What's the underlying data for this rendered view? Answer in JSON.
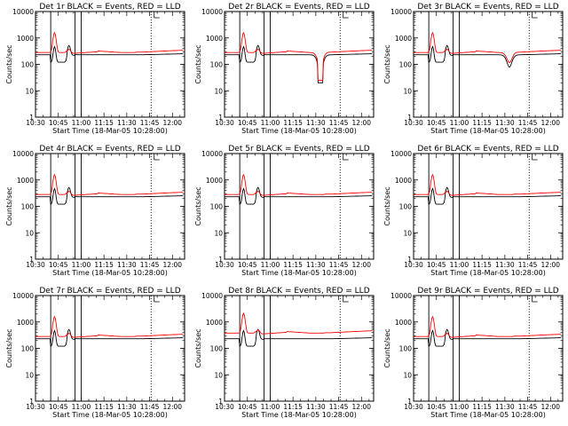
{
  "chart_data": [
    {
      "type": "line",
      "title": "Det 1r  BLACK = Events, RED = LLD",
      "xlabel": "Start Time (18-Mar-05 10:28:00)",
      "ylabel": "Counts/sec",
      "ylim": [
        1,
        10000
      ],
      "yscale": "log",
      "xlim": [
        "10:30",
        "12:08"
      ],
      "x_tick_labels": [
        "10:30",
        "10:45",
        "11:00",
        "11:15",
        "11:30",
        "11:45",
        "12:00"
      ],
      "y_tick_labels": [
        "1",
        "10",
        "100",
        "1000",
        "10000"
      ],
      "vertical_lines": {
        "solid": [
          "10:40",
          "10:56",
          "11:00"
        ],
        "dotted": [
          "11:46"
        ]
      },
      "dip": 0,
      "series": [
        {
          "color": "#000000",
          "scale": 1.0
        },
        {
          "color": "#ff0000",
          "scale": 1.0
        }
      ]
    },
    {
      "type": "line",
      "title": "Det 2r  BLACK = Events, RED = LLD",
      "xlabel": "Start Time (18-Mar-05 10:28:00)",
      "ylabel": "Counts/sec",
      "ylim": [
        1,
        10000
      ],
      "yscale": "log",
      "xlim": [
        "10:30",
        "12:08"
      ],
      "x_tick_labels": [
        "10:30",
        "10:45",
        "11:00",
        "11:15",
        "11:30",
        "11:45",
        "12:00"
      ],
      "y_tick_labels": [
        "1",
        "10",
        "100",
        "1000",
        "10000"
      ],
      "vertical_lines": {
        "solid": [
          "10:40",
          "10:56",
          "11:00"
        ],
        "dotted": [
          "11:46"
        ]
      },
      "dip": 20,
      "series": [
        {
          "color": "#000000",
          "scale": 1.0
        },
        {
          "color": "#ff0000",
          "scale": 1.0
        }
      ]
    },
    {
      "type": "line",
      "title": "Det 3r  BLACK = Events, RED = LLD",
      "xlabel": "Start Time (18-Mar-05 10:28:00)",
      "ylabel": "Counts/sec",
      "ylim": [
        1,
        10000
      ],
      "yscale": "log",
      "xlim": [
        "10:30",
        "12:08"
      ],
      "x_tick_labels": [
        "10:30",
        "10:45",
        "11:00",
        "11:15",
        "11:30",
        "11:45",
        "12:00"
      ],
      "y_tick_labels": [
        "1",
        "10",
        "100",
        "1000",
        "10000"
      ],
      "vertical_lines": {
        "solid": [
          "10:40",
          "10:56",
          "11:00"
        ],
        "dotted": [
          "11:46"
        ]
      },
      "dip": 80,
      "series": [
        {
          "color": "#000000",
          "scale": 1.0
        },
        {
          "color": "#ff0000",
          "scale": 1.0
        }
      ]
    },
    {
      "type": "line",
      "title": "Det 4r  BLACK = Events, RED = LLD",
      "xlabel": "Start Time (18-Mar-05 10:28:00)",
      "ylabel": "Counts/sec",
      "ylim": [
        1,
        10000
      ],
      "yscale": "log",
      "xlim": [
        "10:30",
        "12:08"
      ],
      "x_tick_labels": [
        "10:30",
        "10:45",
        "11:00",
        "11:15",
        "11:30",
        "11:45",
        "12:00"
      ],
      "y_tick_labels": [
        "1",
        "10",
        "100",
        "1000",
        "10000"
      ],
      "vertical_lines": {
        "solid": [
          "10:40",
          "10:56",
          "11:00"
        ],
        "dotted": [
          "11:46"
        ]
      },
      "dip": 0,
      "series": [
        {
          "color": "#000000",
          "scale": 1.0
        },
        {
          "color": "#ff0000",
          "scale": 1.0
        }
      ]
    },
    {
      "type": "line",
      "title": "Det 5r  BLACK = Events, RED = LLD",
      "xlabel": "Start Time (18-Mar-05 10:28:00)",
      "ylabel": "Counts/sec",
      "ylim": [
        1,
        10000
      ],
      "yscale": "log",
      "xlim": [
        "10:30",
        "12:08"
      ],
      "x_tick_labels": [
        "10:30",
        "10:45",
        "11:00",
        "11:15",
        "11:30",
        "11:45",
        "12:00"
      ],
      "y_tick_labels": [
        "1",
        "10",
        "100",
        "1000",
        "10000"
      ],
      "vertical_lines": {
        "solid": [
          "10:40",
          "10:56",
          "11:00"
        ],
        "dotted": [
          "11:46"
        ]
      },
      "dip": 0,
      "series": [
        {
          "color": "#000000",
          "scale": 1.0
        },
        {
          "color": "#ff0000",
          "scale": 1.0
        }
      ]
    },
    {
      "type": "line",
      "title": "Det 6r  BLACK = Events, RED = LLD",
      "xlabel": "Start Time (18-Mar-05 10:28:00)",
      "ylabel": "Counts/sec",
      "ylim": [
        1,
        10000
      ],
      "yscale": "log",
      "xlim": [
        "10:30",
        "12:08"
      ],
      "x_tick_labels": [
        "10:30",
        "10:45",
        "11:00",
        "11:15",
        "11:30",
        "11:45",
        "12:00"
      ],
      "y_tick_labels": [
        "1",
        "10",
        "100",
        "1000",
        "10000"
      ],
      "vertical_lines": {
        "solid": [
          "10:40",
          "10:56",
          "11:00"
        ],
        "dotted": [
          "11:46"
        ]
      },
      "dip": 0,
      "series": [
        {
          "color": "#000000",
          "scale": 1.0
        },
        {
          "color": "#ff0000",
          "scale": 1.0
        }
      ]
    },
    {
      "type": "line",
      "title": "Det 7r  BLACK = Events, RED = LLD",
      "xlabel": "Start Time (18-Mar-05 10:28:00)",
      "ylabel": "Counts/sec",
      "ylim": [
        1,
        10000
      ],
      "yscale": "log",
      "xlim": [
        "10:30",
        "12:08"
      ],
      "x_tick_labels": [
        "10:30",
        "10:45",
        "11:00",
        "11:15",
        "11:30",
        "11:45",
        "12:00"
      ],
      "y_tick_labels": [
        "1",
        "10",
        "100",
        "1000",
        "10000"
      ],
      "vertical_lines": {
        "solid": [
          "10:40",
          "10:56",
          "11:00"
        ],
        "dotted": [
          "11:46"
        ]
      },
      "dip": 0,
      "series": [
        {
          "color": "#000000",
          "scale": 1.0
        },
        {
          "color": "#ff0000",
          "scale": 1.0
        }
      ]
    },
    {
      "type": "line",
      "title": "Det 8r  BLACK = Events, RED = LLD",
      "xlabel": "Start Time (18-Mar-05 10:28:00)",
      "ylabel": "Counts/sec",
      "ylim": [
        1,
        10000
      ],
      "yscale": "log",
      "xlim": [
        "10:30",
        "12:08"
      ],
      "x_tick_labels": [
        "10:30",
        "10:45",
        "11:00",
        "11:15",
        "11:30",
        "11:45",
        "12:00"
      ],
      "y_tick_labels": [
        "1",
        "10",
        "100",
        "1000",
        "10000"
      ],
      "vertical_lines": {
        "solid": [
          "10:40",
          "10:56",
          "11:00"
        ],
        "dotted": [
          "11:46"
        ]
      },
      "dip": 0,
      "series": [
        {
          "color": "#000000",
          "scale": 1.0
        },
        {
          "color": "#ff0000",
          "scale": 1.35
        }
      ]
    },
    {
      "type": "line",
      "title": "Det 9r  BLACK = Events, RED = LLD",
      "xlabel": "Start Time (18-Mar-05 10:28:00)",
      "ylabel": "Counts/sec",
      "ylim": [
        1,
        10000
      ],
      "yscale": "log",
      "xlim": [
        "10:30",
        "12:08"
      ],
      "x_tick_labels": [
        "10:30",
        "10:45",
        "11:00",
        "11:15",
        "11:30",
        "11:45",
        "12:00"
      ],
      "y_tick_labels": [
        "1",
        "10",
        "100",
        "1000",
        "10000"
      ],
      "vertical_lines": {
        "solid": [
          "10:40",
          "10:56",
          "11:00"
        ],
        "dotted": [
          "11:46"
        ]
      },
      "dip": 0,
      "series": [
        {
          "color": "#000000",
          "scale": 1.0
        },
        {
          "color": "#ff0000",
          "scale": 1.0
        }
      ]
    }
  ]
}
